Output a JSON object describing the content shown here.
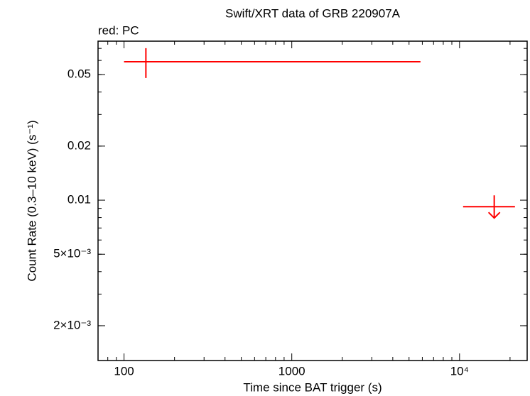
{
  "chart_data": {
    "type": "scatter",
    "title": "Swift/XRT data of GRB 220907A",
    "subtitle": "red: PC",
    "x_label": "Time since BAT trigger (s)",
    "y_label": "Count Rate (0.3–10 keV) (s⁻¹)",
    "log_x": true,
    "log_y": true,
    "xlim": [
      70,
      25300
    ],
    "ylim": [
      0.00128,
      0.0768
    ],
    "xticks": [
      100,
      1000,
      {
        "value": 10000,
        "label": "10⁴"
      }
    ],
    "yticks": [
      {
        "value": 0.002,
        "label": "2×10⁻³"
      },
      {
        "value": 0.005,
        "label": "5×10⁻³"
      },
      0.01,
      0.02,
      0.05
    ],
    "xminor": [
      80,
      90,
      200,
      300,
      400,
      500,
      600,
      700,
      800,
      900,
      2000,
      3000,
      4000,
      5000,
      6000,
      7000,
      8000,
      9000,
      20000
    ],
    "yminor": [
      0.002,
      0.003,
      0.004,
      0.005,
      0.006,
      0.007,
      0.008,
      0.009,
      0.02,
      0.03,
      0.04,
      0.05,
      0.06,
      0.07
    ],
    "series": [
      {
        "color": "#ff0000",
        "points": [
          {
            "x": 135,
            "x_min": 100,
            "x_max": 5850,
            "y": 0.059,
            "y_min": 0.0479,
            "y_max": 0.0702
          },
          {
            "x": 16100,
            "x_min": 10500,
            "x_max": 21400,
            "y": 0.0092,
            "upper_limit": true
          }
        ]
      }
    ]
  }
}
